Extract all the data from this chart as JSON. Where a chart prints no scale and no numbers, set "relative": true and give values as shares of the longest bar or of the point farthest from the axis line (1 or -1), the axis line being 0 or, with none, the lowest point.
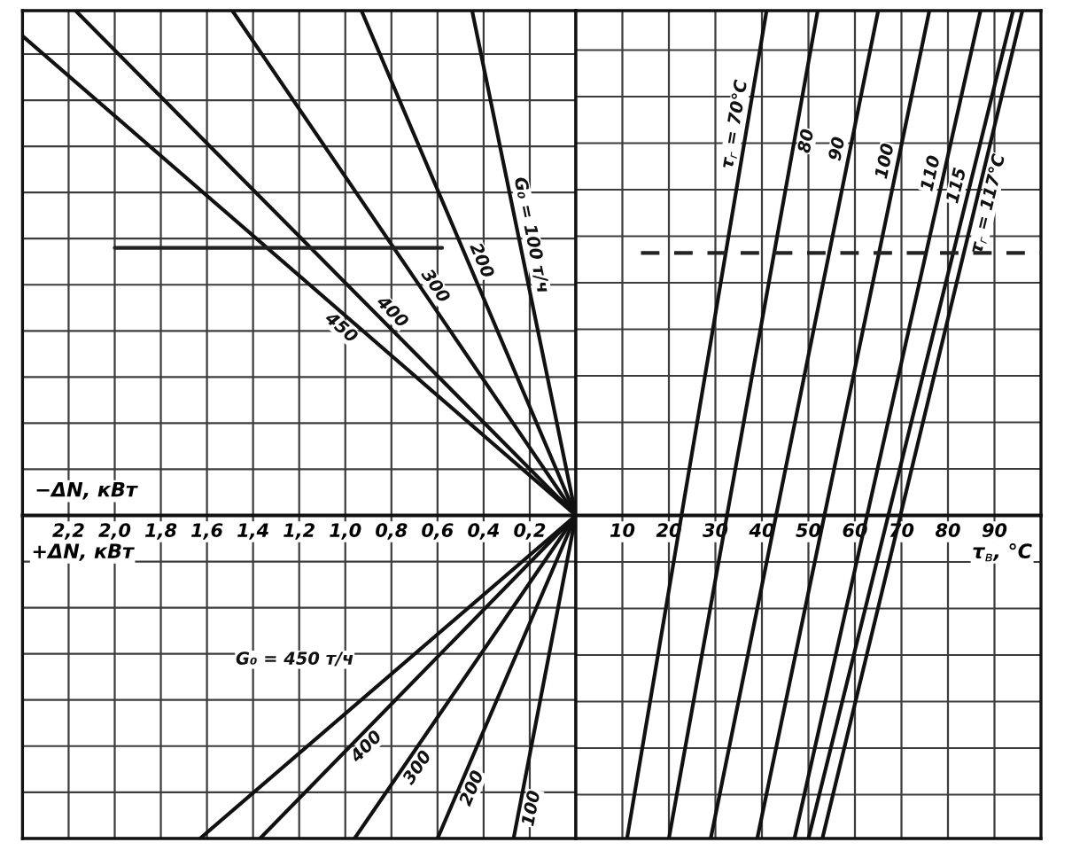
{
  "chart_data": [
    {
      "type": "line",
      "relative": true,
      "xlabel": "+ΔN, кВт",
      "annotations": [
        "−ΔN, кВт"
      ],
      "xlim": [
        2.4,
        0
      ],
      "xticks": [
        {
          "value": 2.2,
          "label": "2,2"
        },
        {
          "value": 2.0,
          "label": "2,0"
        },
        {
          "value": 1.8,
          "label": "1,8"
        },
        {
          "value": 1.6,
          "label": "1,6"
        },
        {
          "value": 1.4,
          "label": "1,4"
        },
        {
          "value": 1.2,
          "label": "1,2"
        },
        {
          "value": 1.0,
          "label": "1,0"
        },
        {
          "value": 0.8,
          "label": "0,8"
        },
        {
          "value": 0.6,
          "label": "0,6"
        },
        {
          "value": 0.4,
          "label": "0,4"
        },
        {
          "value": 0.2,
          "label": "0,2"
        }
      ],
      "grid": true,
      "series": [
        {
          "name": "G₀ = 100 т/ч",
          "color": "#111111",
          "x": [
            0,
            0.45
          ],
          "values": [
            0,
            1
          ]
        },
        {
          "name": "200",
          "color": "#111111",
          "x": [
            0,
            0.93
          ],
          "values": [
            0,
            1
          ]
        },
        {
          "name": "300",
          "color": "#111111",
          "x": [
            0,
            1.49
          ],
          "values": [
            0,
            1
          ]
        },
        {
          "name": "400",
          "color": "#111111",
          "x": [
            0,
            2.17
          ],
          "values": [
            0,
            1
          ]
        },
        {
          "name": "450",
          "color": "#111111",
          "x": [
            0,
            2.4
          ],
          "values": [
            0,
            0.95
          ]
        },
        {
          "name": "G₀ = 450 т/ч",
          "color": "#111111",
          "x": [
            0,
            1.63
          ],
          "values": [
            0,
            -0.64
          ]
        },
        {
          "name": "400",
          "color": "#111111",
          "x": [
            0,
            1.37
          ],
          "values": [
            0,
            -0.64
          ]
        },
        {
          "name": "300",
          "color": "#111111",
          "x": [
            0,
            0.96
          ],
          "values": [
            0,
            -0.64
          ]
        },
        {
          "name": "200",
          "color": "#111111",
          "x": [
            0,
            0.6
          ],
          "values": [
            0,
            -0.64
          ]
        },
        {
          "name": "100",
          "color": "#111111",
          "x": [
            0,
            0.27
          ],
          "values": [
            0,
            -0.64
          ]
        },
        {
          "color": "#222222",
          "x": [
            2.0,
            0.58
          ],
          "values": [
            0.53,
            0.53
          ]
        }
      ]
    },
    {
      "type": "line",
      "relative": true,
      "xlabel": "τ$_{в}$, °C",
      "xlim": [
        0,
        100
      ],
      "xticks": [
        10,
        20,
        30,
        40,
        50,
        60,
        70,
        80,
        90
      ],
      "grid": true,
      "series": [
        {
          "name": "τ$_{г}$ = 70°C",
          "color": "#111111",
          "x": [
            11,
            41
          ],
          "values": [
            -0.64,
            1
          ]
        },
        {
          "name": "80",
          "color": "#111111",
          "x": [
            20,
            52
          ],
          "values": [
            -0.64,
            1
          ]
        },
        {
          "name": "90",
          "color": "#111111",
          "x": [
            29,
            65
          ],
          "values": [
            -0.64,
            1
          ]
        },
        {
          "name": "100",
          "color": "#111111",
          "x": [
            39,
            76
          ],
          "values": [
            -0.64,
            1
          ]
        },
        {
          "name": "110",
          "color": "#111111",
          "x": [
            47,
            87
          ],
          "values": [
            -0.64,
            1
          ]
        },
        {
          "name": "115",
          "color": "#111111",
          "x": [
            50,
            94
          ],
          "values": [
            -0.64,
            1
          ]
        },
        {
          "name": "τ$_{г}$ = 117°C",
          "color": "#111111",
          "x": [
            53,
            96
          ],
          "values": [
            -0.64,
            1
          ]
        },
        {
          "color": "#222222",
          "x": [
            14,
            100
          ],
          "values": [
            0.52,
            0.52
          ],
          "line_style": "dashed"
        }
      ]
    }
  ]
}
